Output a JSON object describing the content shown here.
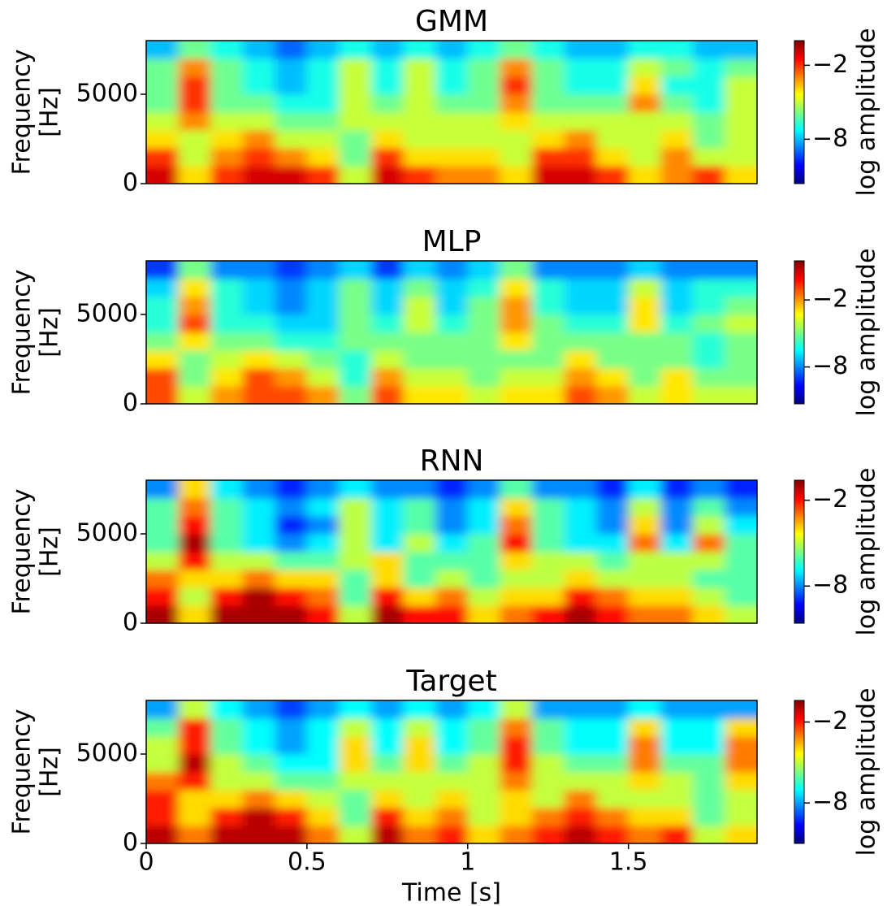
{
  "chart_data": [
    {
      "type": "heatmap",
      "title": "GMM",
      "ylabel": [
        "Frequency",
        "[Hz]"
      ],
      "colorbar_label": "log amplitude",
      "colormap": "jet",
      "xlim": [
        0,
        1.9
      ],
      "ylim": [
        0,
        8000
      ],
      "yticks": [
        0,
        5000
      ],
      "clim": [
        -11.6,
        0
      ],
      "cticks": [
        {
          "value": -2,
          "label": "−2"
        },
        {
          "value": -8,
          "label": "−8"
        }
      ],
      "xbins": [
        0,
        0.1,
        0.2,
        0.3,
        0.4,
        0.5,
        0.6,
        0.7,
        0.8,
        0.9,
        1.0,
        1.1,
        1.2,
        1.3,
        1.4,
        1.5,
        1.6,
        1.7,
        1.8,
        1.9
      ],
      "ybins": [
        0,
        1000,
        2000,
        3000,
        4000,
        5000,
        6000,
        7000,
        8000
      ],
      "z": [
        [
          -1,
          -4,
          -2,
          -1,
          -1,
          -2,
          -5,
          -1,
          -2,
          -3,
          -3,
          -4,
          -1,
          -1,
          -2,
          -4,
          -3,
          -2,
          -4
        ],
        [
          -2,
          -5,
          -3,
          -2,
          -3,
          -4,
          -6,
          -2,
          -4,
          -4,
          -4,
          -5,
          -2,
          -2,
          -4,
          -5,
          -3,
          -5,
          -5
        ],
        [
          -4,
          -5,
          -4,
          -3,
          -5,
          -5,
          -6,
          -4,
          -5,
          -5,
          -5,
          -5,
          -4,
          -3,
          -5,
          -5,
          -4,
          -6,
          -5
        ],
        [
          -5,
          -3,
          -5,
          -5,
          -6,
          -6,
          -5,
          -5,
          -5,
          -5,
          -5,
          -4,
          -5,
          -5,
          -5,
          -5,
          -5,
          -6,
          -5
        ],
        [
          -6,
          -2,
          -6,
          -6,
          -7,
          -7,
          -5,
          -6,
          -5,
          -6,
          -6,
          -3,
          -6,
          -6,
          -6,
          -3,
          -6,
          -7,
          -5
        ],
        [
          -6,
          -2,
          -6,
          -7,
          -8,
          -7,
          -5,
          -7,
          -5,
          -7,
          -6,
          -2,
          -6,
          -7,
          -7,
          -4,
          -7,
          -7,
          -5
        ],
        [
          -6,
          -3,
          -6,
          -7,
          -8,
          -7,
          -5,
          -7,
          -5,
          -7,
          -6,
          -3,
          -6,
          -7,
          -7,
          -5,
          -6,
          -7,
          -6
        ],
        [
          -8,
          -6,
          -7,
          -8,
          -9,
          -8,
          -7,
          -8,
          -7,
          -8,
          -7,
          -6,
          -7,
          -8,
          -8,
          -7,
          -7,
          -8,
          -8
        ]
      ]
    },
    {
      "type": "heatmap",
      "title": "MLP",
      "ylabel": [
        "Frequency",
        "[Hz]"
      ],
      "colorbar_label": "log amplitude",
      "colormap": "jet",
      "xlim": [
        0,
        1.9
      ],
      "ylim": [
        0,
        8000
      ],
      "yticks": [
        0,
        5000
      ],
      "clim": [
        -11.3,
        1.5
      ],
      "cticks": [
        {
          "value": -2,
          "label": "−2"
        },
        {
          "value": -8,
          "label": "−8"
        }
      ],
      "xbins": [
        0,
        0.1,
        0.2,
        0.3,
        0.4,
        0.5,
        0.6,
        0.7,
        0.8,
        0.9,
        1.0,
        1.1,
        1.2,
        1.3,
        1.4,
        1.5,
        1.6,
        1.7,
        1.8,
        1.9
      ],
      "ybins": [
        0,
        1000,
        2000,
        3000,
        4000,
        5000,
        6000,
        7000,
        8000
      ],
      "z": [
        [
          -1,
          -4,
          -2,
          -1,
          -1,
          -2,
          -5,
          -1,
          -3,
          -3,
          -4,
          -3,
          -3,
          -1,
          -2,
          -4,
          -3,
          -4,
          -4
        ],
        [
          -1,
          -5,
          -3,
          -1,
          -2,
          -4,
          -6,
          -2,
          -4,
          -4,
          -5,
          -4,
          -4,
          -2,
          -3,
          -5,
          -3,
          -5,
          -5
        ],
        [
          -3,
          -5,
          -4,
          -3,
          -4,
          -5,
          -6,
          -4,
          -5,
          -5,
          -5,
          -5,
          -5,
          -3,
          -5,
          -5,
          -5,
          -6,
          -5
        ],
        [
          -5,
          -3,
          -5,
          -5,
          -6,
          -6,
          -5,
          -5,
          -5,
          -5,
          -5,
          -3,
          -5,
          -5,
          -5,
          -5,
          -5,
          -6,
          -5
        ],
        [
          -6,
          -1,
          -6,
          -6,
          -7,
          -7,
          -5,
          -6,
          -4,
          -6,
          -5,
          -2,
          -5,
          -6,
          -6,
          -3,
          -6,
          -5,
          -4
        ],
        [
          -6,
          -2,
          -6,
          -7,
          -8,
          -7,
          -5,
          -7,
          -4,
          -7,
          -5,
          -2,
          -6,
          -7,
          -7,
          -3,
          -7,
          -6,
          -5
        ],
        [
          -7,
          -3,
          -6,
          -7,
          -8,
          -7,
          -5,
          -7,
          -5,
          -7,
          -6,
          -3,
          -6,
          -7,
          -7,
          -4,
          -7,
          -6,
          -6
        ],
        [
          -9,
          -5,
          -8,
          -8,
          -9,
          -8,
          -7,
          -9,
          -7,
          -8,
          -7,
          -5,
          -8,
          -8,
          -8,
          -7,
          -8,
          -8,
          -8
        ]
      ]
    },
    {
      "type": "heatmap",
      "title": "RNN",
      "ylabel": [
        "Frequency",
        "[Hz]"
      ],
      "colorbar_label": "log amplitude",
      "colormap": "jet",
      "xlim": [
        0,
        1.9
      ],
      "ylim": [
        0,
        8000
      ],
      "yticks": [
        0,
        5000
      ],
      "clim": [
        -10.6,
        -0.6
      ],
      "cticks": [
        {
          "value": -2,
          "label": "−2"
        },
        {
          "value": -8,
          "label": "−8"
        }
      ],
      "xbins": [
        0,
        0.1,
        0.2,
        0.3,
        0.4,
        0.5,
        0.6,
        0.7,
        0.8,
        0.9,
        1.0,
        1.1,
        1.2,
        1.3,
        1.4,
        1.5,
        1.6,
        1.7,
        1.8,
        1.9
      ],
      "ybins": [
        0,
        1000,
        2000,
        3000,
        4000,
        5000,
        6000,
        7000,
        8000
      ],
      "z": [
        [
          -1,
          -4,
          -1,
          -1,
          -1,
          -2,
          -5,
          -1,
          -2,
          -2,
          -4,
          -3,
          -2,
          -1,
          -2,
          -3,
          -3,
          -4,
          -5
        ],
        [
          -2,
          -5,
          -2,
          -1,
          -2,
          -3,
          -6,
          -2,
          -4,
          -3,
          -5,
          -4,
          -4,
          -2,
          -3,
          -4,
          -4,
          -5,
          -6
        ],
        [
          -3,
          -4,
          -4,
          -3,
          -4,
          -4,
          -6,
          -4,
          -6,
          -5,
          -6,
          -5,
          -5,
          -4,
          -5,
          -5,
          -5,
          -6,
          -6
        ],
        [
          -5,
          -2,
          -5,
          -5,
          -6,
          -6,
          -5,
          -4,
          -6,
          -6,
          -6,
          -4,
          -5,
          -5,
          -6,
          -5,
          -5,
          -5,
          -6
        ],
        [
          -6,
          -1,
          -6,
          -7,
          -8,
          -7,
          -5,
          -7,
          -5,
          -7,
          -6,
          -2,
          -6,
          -7,
          -7,
          -3,
          -7,
          -3,
          -6
        ],
        [
          -6,
          -2,
          -6,
          -7,
          -9,
          -8,
          -5,
          -7,
          -6,
          -8,
          -7,
          -3,
          -6,
          -7,
          -8,
          -4,
          -8,
          -5,
          -7
        ],
        [
          -6,
          -3,
          -6,
          -7,
          -8,
          -7,
          -5,
          -7,
          -6,
          -8,
          -7,
          -4,
          -6,
          -7,
          -8,
          -5,
          -8,
          -6,
          -8
        ],
        [
          -8,
          -4,
          -7,
          -8,
          -9,
          -8,
          -7,
          -8,
          -8,
          -9,
          -8,
          -6,
          -8,
          -8,
          -9,
          -7,
          -9,
          -8,
          -9
        ]
      ]
    },
    {
      "type": "heatmap",
      "title": "Target",
      "ylabel": [
        "Frequency",
        "[Hz]"
      ],
      "xlabel": "Time [s]",
      "colorbar_label": "log amplitude",
      "colormap": "jet",
      "xlim": [
        0,
        1.9
      ],
      "xticks": [
        0,
        0.5,
        1,
        1.5
      ],
      "ylim": [
        0,
        8000
      ],
      "yticks": [
        0,
        5000
      ],
      "clim": [
        -11.0,
        -0.4
      ],
      "cticks": [
        {
          "value": -2,
          "label": "−2"
        },
        {
          "value": -8,
          "label": "−8"
        }
      ],
      "xbins": [
        0,
        0.1,
        0.2,
        0.3,
        0.4,
        0.5,
        0.6,
        0.7,
        0.8,
        0.9,
        1.0,
        1.1,
        1.2,
        1.3,
        1.4,
        1.5,
        1.6,
        1.7,
        1.8,
        1.9
      ],
      "ybins": [
        0,
        1000,
        2000,
        3000,
        4000,
        5000,
        6000,
        7000,
        8000
      ],
      "z": [
        [
          -1,
          -3,
          -1,
          -1,
          -1,
          -3,
          -5,
          -1,
          -3,
          -2,
          -4,
          -3,
          -2,
          -1,
          -2,
          -3,
          -2,
          -5,
          -4
        ],
        [
          -2,
          -4,
          -2,
          -1,
          -2,
          -4,
          -6,
          -2,
          -4,
          -3,
          -5,
          -4,
          -3,
          -2,
          -3,
          -4,
          -4,
          -6,
          -5
        ],
        [
          -2,
          -4,
          -4,
          -3,
          -4,
          -5,
          -6,
          -4,
          -5,
          -4,
          -5,
          -4,
          -5,
          -3,
          -5,
          -5,
          -5,
          -6,
          -5
        ],
        [
          -3,
          -2,
          -5,
          -5,
          -6,
          -6,
          -5,
          -5,
          -5,
          -5,
          -5,
          -3,
          -5,
          -5,
          -5,
          -4,
          -5,
          -6,
          -4
        ],
        [
          -5,
          -1,
          -5,
          -6,
          -7,
          -7,
          -4,
          -6,
          -4,
          -6,
          -5,
          -2,
          -5,
          -6,
          -6,
          -3,
          -6,
          -6,
          -3
        ],
        [
          -5,
          -2,
          -6,
          -7,
          -8,
          -7,
          -4,
          -7,
          -4,
          -7,
          -6,
          -2,
          -6,
          -7,
          -7,
          -3,
          -7,
          -7,
          -3
        ],
        [
          -6,
          -2,
          -6,
          -7,
          -8,
          -7,
          -5,
          -7,
          -5,
          -7,
          -6,
          -3,
          -6,
          -7,
          -7,
          -4,
          -7,
          -7,
          -4
        ],
        [
          -8,
          -5,
          -7,
          -8,
          -9,
          -8,
          -7,
          -8,
          -7,
          -8,
          -7,
          -5,
          -8,
          -8,
          -8,
          -7,
          -8,
          -8,
          -8
        ]
      ]
    }
  ]
}
